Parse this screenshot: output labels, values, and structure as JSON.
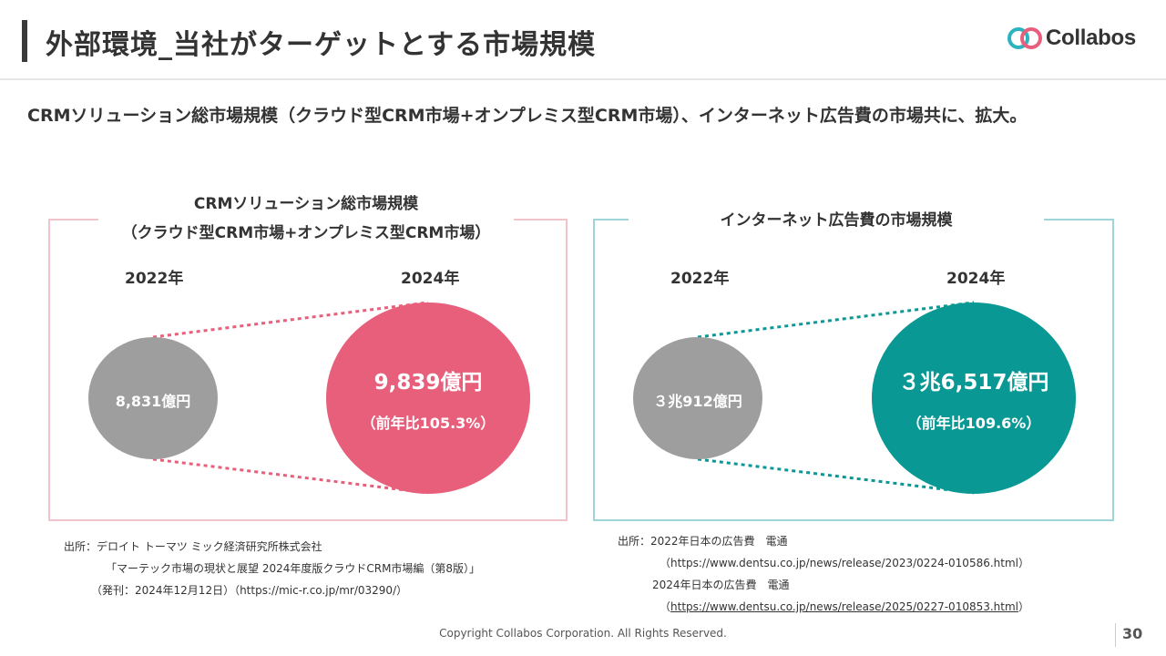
{
  "slide": {
    "title": "外部環境_当社がターゲットとする市場規模",
    "headline": "CRMソリューション総市場規模（クラウド型CRM市場+オンプレミス型CRM市場）、インターネット広告費の市場共に、拡大。"
  },
  "logo": {
    "text": "Collabos",
    "icon": "collabos-logo-icon"
  },
  "left_panel": {
    "title_line1": "CRMソリューション総市場規模",
    "title_line2": "（クラウド型CRM市場+オンプレミス型CRM市場）",
    "year_from": "2022年",
    "year_to": "2024年",
    "value_from": "8,831億円",
    "value_to": "9,839億円",
    "growth": "（前年比105.3%）",
    "color_from": "#9e9e9e",
    "color_to": "#e85f7c",
    "line_color": "#e85f7c"
  },
  "right_panel": {
    "title": "インターネット広告費の市場規模",
    "year_from": "2022年",
    "year_to": "2024年",
    "value_from": "３兆912億円",
    "value_to": "３兆6,517億円",
    "growth": "（前年比109.6%）",
    "color_from": "#9e9e9e",
    "color_to": "#0a9894",
    "line_color": "#0a9894"
  },
  "sources_left": {
    "line1": "出所：デロイト トーマツ ミック経済研究所株式会社",
    "line2": "「マーテック市場の現状と展望 2024年度版クラウドCRM市場編（第8版）」",
    "line3": "（発刊：2024年12月12日）（https://mic-r.co.jp/mr/03290/）"
  },
  "sources_right": {
    "line1": "出所：2022年日本の広告費　電通",
    "line2": "（https://www.dentsu.co.jp/news/release/2023/0224-010586.html）",
    "line3": "2024年日本の広告費　電通",
    "line4_prefix": "（",
    "line4_link": "https://www.dentsu.co.jp/news/release/2025/0227-010853.html",
    "line4_suffix": "）"
  },
  "footer": {
    "copyright": "Copyright Collabos Corporation. All Rights Reserved.",
    "page": "30"
  }
}
